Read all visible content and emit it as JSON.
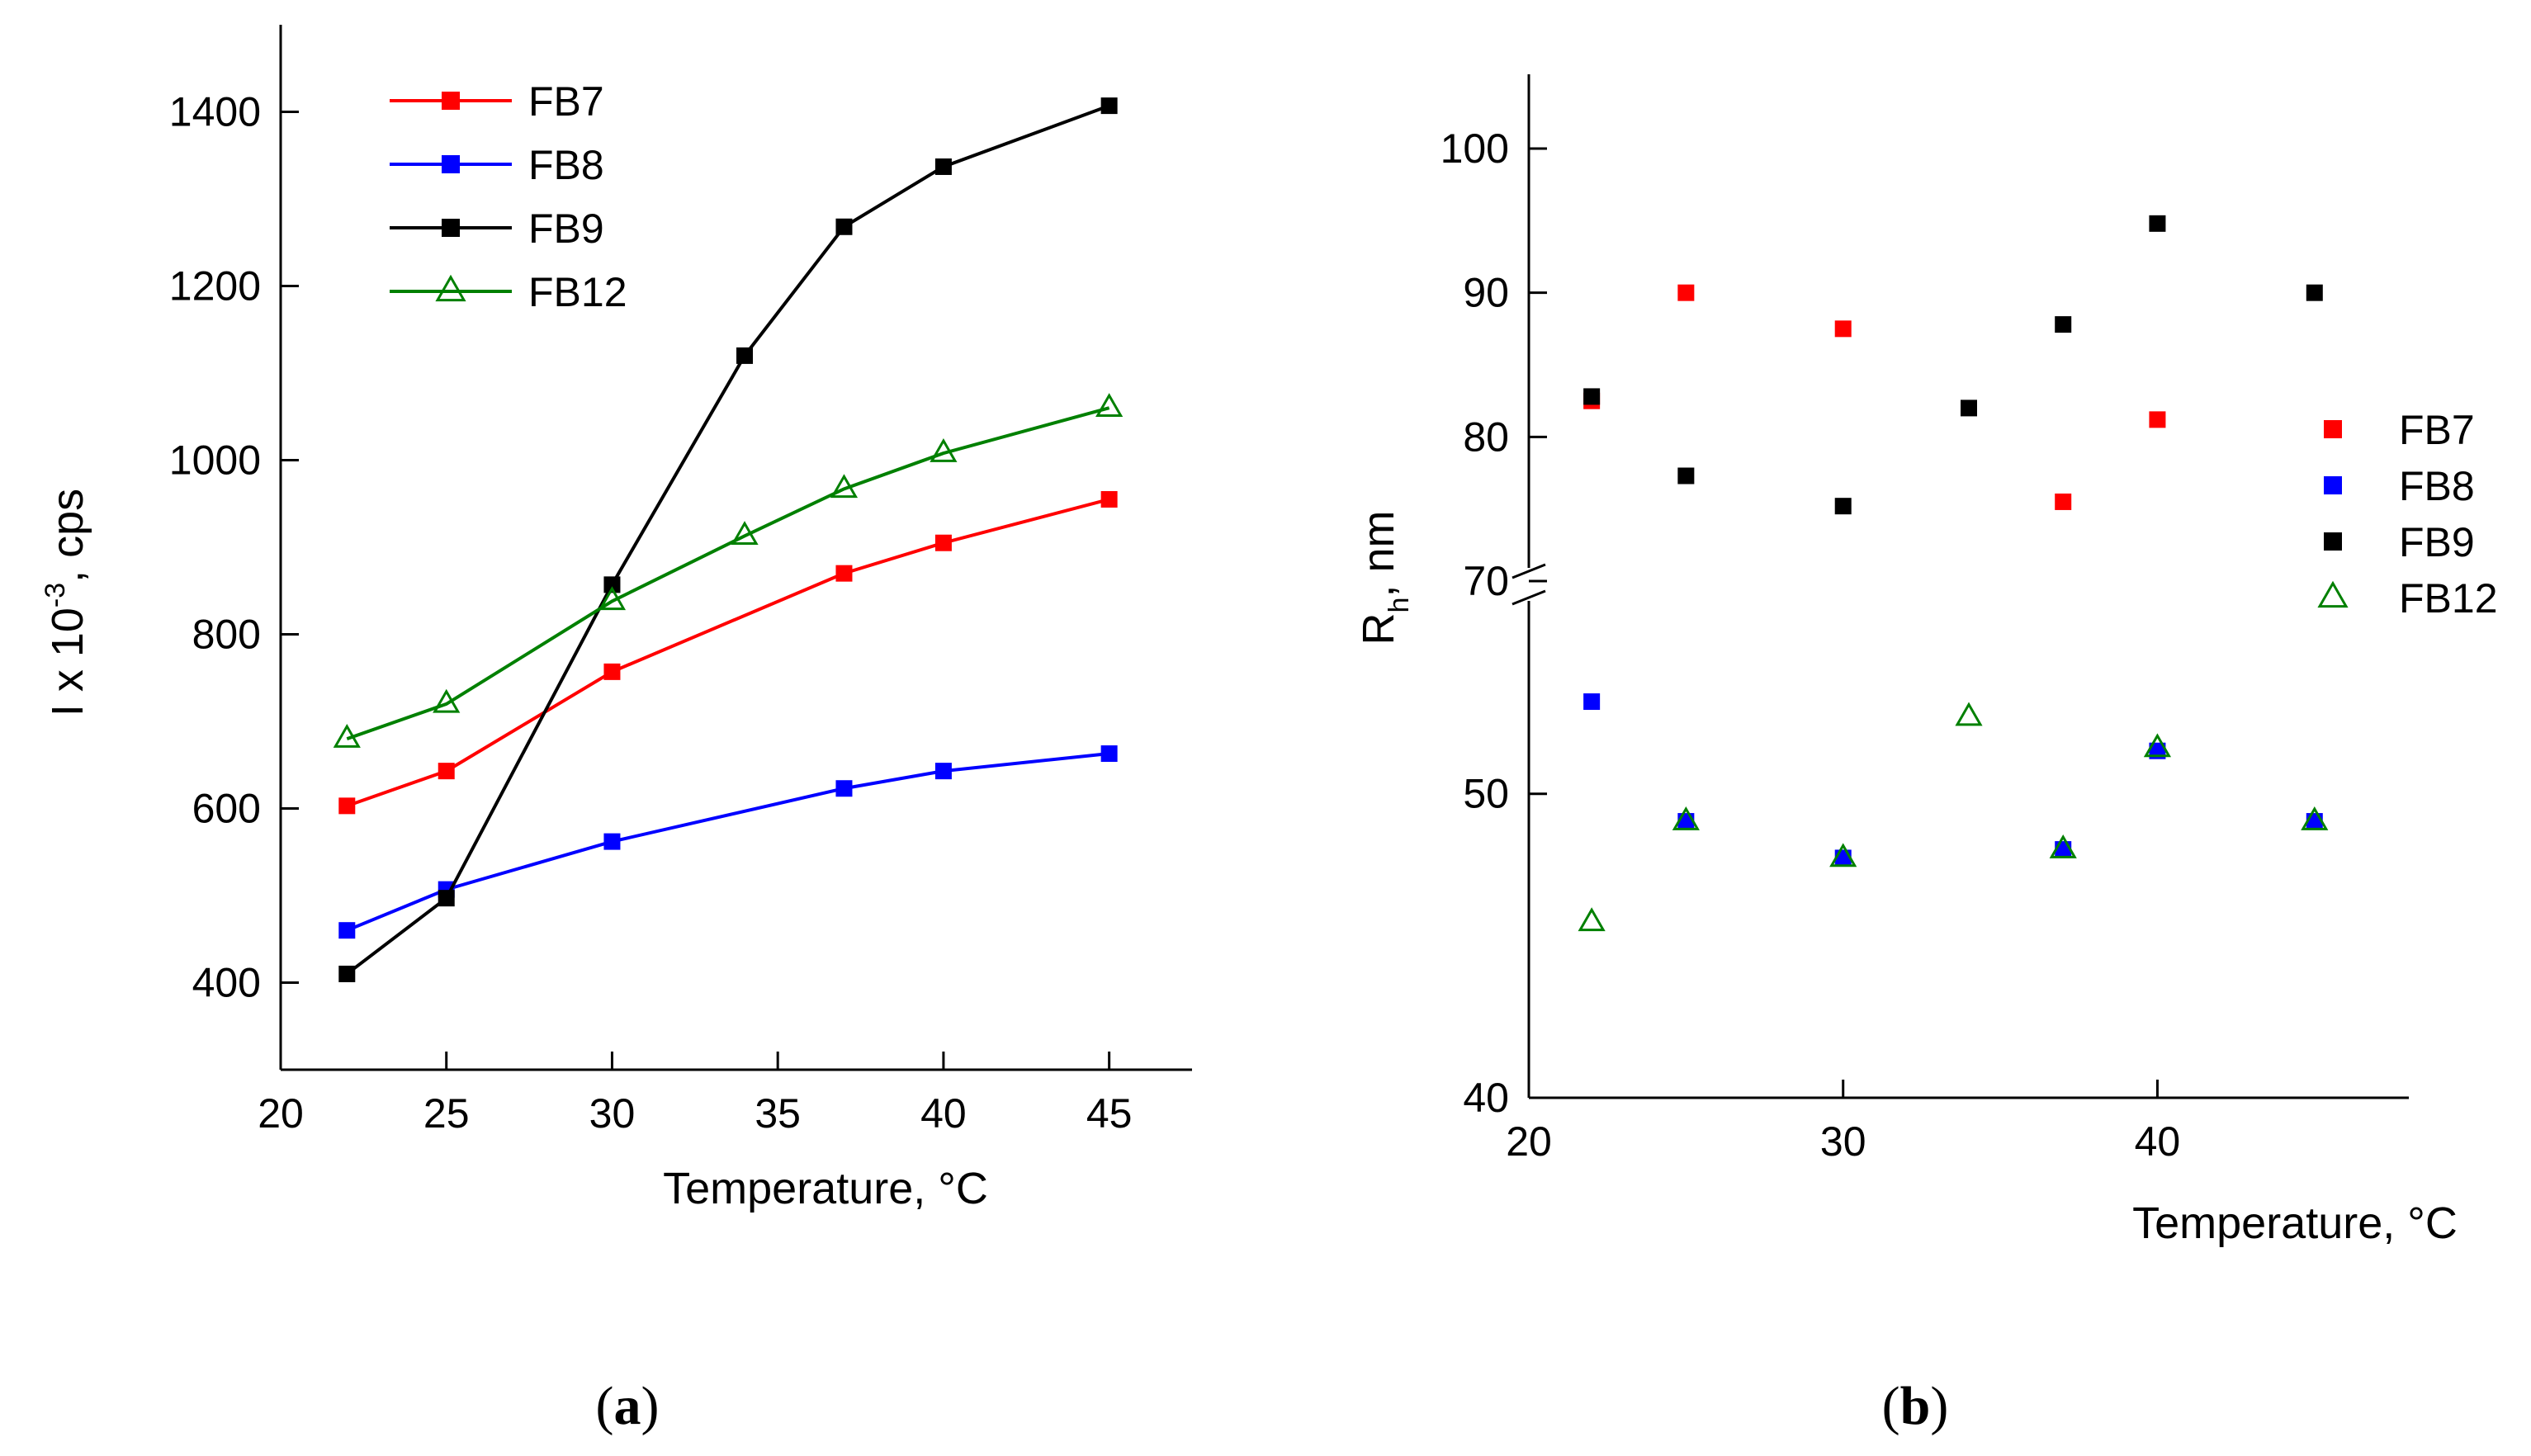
{
  "chart_data": [
    {
      "panel": "(a)",
      "type": "line",
      "xlabel": "Temperature, °C",
      "ylabel_main": "I x 10",
      "ylabel_sup": "-3",
      "ylabel_tail": ", cps",
      "xlim": [
        20,
        47.5
      ],
      "ylim": [
        300,
        1500
      ],
      "x_ticks": [
        20,
        25,
        30,
        35,
        40,
        45
      ],
      "y_ticks": [
        400,
        600,
        800,
        1000,
        1200,
        1400
      ],
      "legend_position": "top-left",
      "series": [
        {
          "name": "FB7",
          "color": "#ff0000",
          "marker": "square",
          "points": [
            [
              22,
              603
            ],
            [
              25,
              643
            ],
            [
              30,
              757
            ],
            [
              37,
              870
            ],
            [
              40,
              905
            ],
            [
              45,
              955
            ]
          ]
        },
        {
          "name": "FB8",
          "color": "#0000ff",
          "marker": "square",
          "points": [
            [
              22,
              460
            ],
            [
              25,
              507
            ],
            [
              30,
              562
            ],
            [
              37,
              623
            ],
            [
              40,
              643
            ],
            [
              45,
              663
            ]
          ]
        },
        {
          "name": "FB9",
          "color": "#000000",
          "marker": "square",
          "points": [
            [
              22,
              410
            ],
            [
              25,
              497
            ],
            [
              30,
              857
            ],
            [
              34,
              1120
            ],
            [
              37,
              1268
            ],
            [
              40,
              1337
            ],
            [
              45,
              1407
            ]
          ]
        },
        {
          "name": "FB12",
          "color": "#008000",
          "marker": "open-triangle",
          "points": [
            [
              22,
              680
            ],
            [
              25,
              720
            ],
            [
              30,
              838
            ],
            [
              34,
              913
            ],
            [
              37,
              967
            ],
            [
              40,
              1008
            ],
            [
              45,
              1060
            ]
          ]
        }
      ]
    },
    {
      "panel": "(b)",
      "type": "scatter",
      "xlabel": "Temperature, °C",
      "ylabel_main": "R",
      "ylabel_sub": "h",
      "ylabel_tail": ", nm",
      "xlim": [
        20,
        48
      ],
      "broken_y_axis": true,
      "y_lower_range": [
        40,
        57
      ],
      "y_upper_range": [
        70,
        105
      ],
      "y_ticks_lower": [
        40,
        50
      ],
      "y_ticks_upper": [
        70,
        80,
        90,
        100
      ],
      "x_ticks": [
        20,
        30,
        40
      ],
      "legend_position": "right",
      "series": [
        {
          "name": "FB7",
          "color": "#ff0000",
          "marker": "square",
          "points": [
            [
              22,
              82.5
            ],
            [
              25,
              90
            ],
            [
              30,
              87.5
            ],
            [
              37,
              75.5
            ],
            [
              40,
              81.2
            ]
          ]
        },
        {
          "name": "FB8",
          "color": "#0000ff",
          "marker": "square",
          "points": [
            [
              22,
              53.5
            ],
            [
              25,
              49
            ],
            [
              30,
              47.7
            ],
            [
              37,
              48
            ],
            [
              40,
              51.6
            ],
            [
              45,
              49
            ]
          ]
        },
        {
          "name": "FB9",
          "color": "#000000",
          "marker": "square",
          "points": [
            [
              22,
              82.8
            ],
            [
              25,
              77.3
            ],
            [
              30,
              75.2
            ],
            [
              34,
              82
            ],
            [
              37,
              87.8
            ],
            [
              40,
              94.8
            ],
            [
              45,
              90
            ]
          ]
        },
        {
          "name": "FB12",
          "color": "#008000",
          "marker": "open-triangle",
          "points": [
            [
              22,
              45.5
            ],
            [
              25,
              49
            ],
            [
              30,
              47.7
            ],
            [
              34,
              52.9
            ],
            [
              37,
              48
            ],
            [
              40,
              51.7
            ],
            [
              45,
              49
            ]
          ]
        }
      ]
    }
  ]
}
